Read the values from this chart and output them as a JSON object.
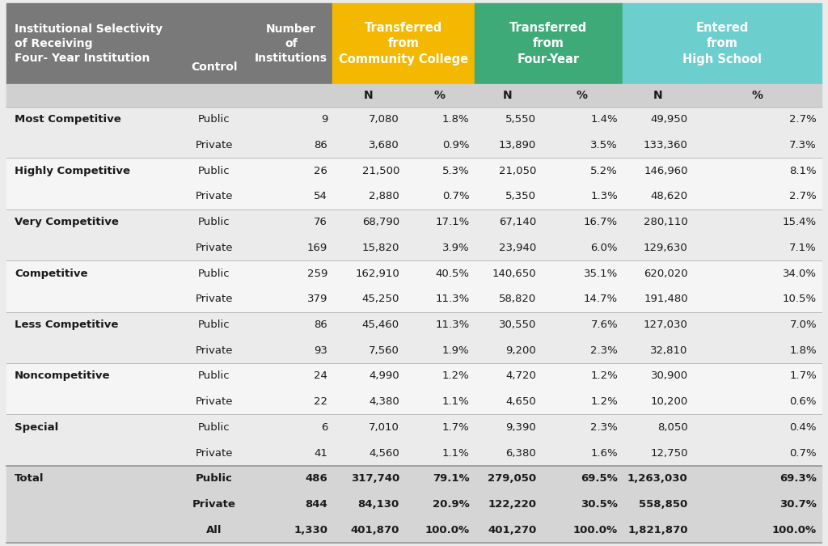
{
  "header_bg_gray": "#797979",
  "header_bg_yellow": "#F5B800",
  "header_bg_green": "#3DAA78",
  "header_bg_teal": "#6DCECE",
  "col1_header": "Institutional Selectivity\nof Receiving\nFour- Year Institution",
  "col2_header": "Control",
  "col3_header": "Number\nof\nInstitutions",
  "col4_header": "Transferred\nfrom\nCommunity College",
  "col5_header": "Transferred\nfrom\nFour-Year",
  "col6_header": "Entered\nfrom\nHigh School",
  "row_bg_even": "#EBEBEB",
  "row_bg_odd": "#F5F5F5",
  "row_bg_total": "#D5D5D5",
  "subheader_bg": "#D0D0D0",
  "rows": [
    [
      "Most Competitive",
      "Public",
      "9",
      "7,080",
      "1.8%",
      "5,550",
      "1.4%",
      "49,950",
      "2.7%"
    ],
    [
      "",
      "Private",
      "86",
      "3,680",
      "0.9%",
      "13,890",
      "3.5%",
      "133,360",
      "7.3%"
    ],
    [
      "Highly Competitive",
      "Public",
      "26",
      "21,500",
      "5.3%",
      "21,050",
      "5.2%",
      "146,960",
      "8.1%"
    ],
    [
      "",
      "Private",
      "54",
      "2,880",
      "0.7%",
      "5,350",
      "1.3%",
      "48,620",
      "2.7%"
    ],
    [
      "Very Competitive",
      "Public",
      "76",
      "68,790",
      "17.1%",
      "67,140",
      "16.7%",
      "280,110",
      "15.4%"
    ],
    [
      "",
      "Private",
      "169",
      "15,820",
      "3.9%",
      "23,940",
      "6.0%",
      "129,630",
      "7.1%"
    ],
    [
      "Competitive",
      "Public",
      "259",
      "162,910",
      "40.5%",
      "140,650",
      "35.1%",
      "620,020",
      "34.0%"
    ],
    [
      "",
      "Private",
      "379",
      "45,250",
      "11.3%",
      "58,820",
      "14.7%",
      "191,480",
      "10.5%"
    ],
    [
      "Less Competitive",
      "Public",
      "86",
      "45,460",
      "11.3%",
      "30,550",
      "7.6%",
      "127,030",
      "7.0%"
    ],
    [
      "",
      "Private",
      "93",
      "7,560",
      "1.9%",
      "9,200",
      "2.3%",
      "32,810",
      "1.8%"
    ],
    [
      "Noncompetitive",
      "Public",
      "24",
      "4,990",
      "1.2%",
      "4,720",
      "1.2%",
      "30,900",
      "1.7%"
    ],
    [
      "",
      "Private",
      "22",
      "4,380",
      "1.1%",
      "4,650",
      "1.2%",
      "10,200",
      "0.6%"
    ],
    [
      "Special",
      "Public",
      "6",
      "7,010",
      "1.7%",
      "9,390",
      "2.3%",
      "8,050",
      "0.4%"
    ],
    [
      "",
      "Private",
      "41",
      "4,560",
      "1.1%",
      "6,380",
      "1.6%",
      "12,750",
      "0.7%"
    ],
    [
      "Total",
      "Public",
      "486",
      "317,740",
      "79.1%",
      "279,050",
      "69.5%",
      "1,263,030",
      "69.3%"
    ],
    [
      "",
      "Private",
      "844",
      "84,130",
      "20.9%",
      "122,220",
      "30.5%",
      "558,850",
      "30.7%"
    ],
    [
      "",
      "All",
      "1,330",
      "401,870",
      "100.0%",
      "401,270",
      "100.0%",
      "1,821,870",
      "100.0%"
    ]
  ],
  "total_rows": [
    14,
    15,
    16
  ],
  "col_boundaries": [
    0.0,
    0.212,
    0.298,
    0.4,
    0.488,
    0.574,
    0.656,
    0.756,
    0.842,
    1.0
  ],
  "col_aligns": [
    "left",
    "center",
    "right",
    "right",
    "right",
    "right",
    "right",
    "right",
    "right"
  ]
}
